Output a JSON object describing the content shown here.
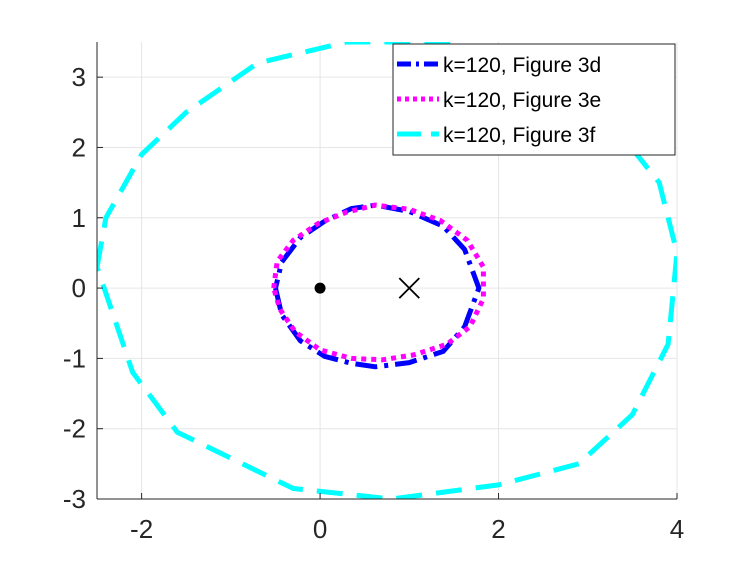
{
  "chart_data": {
    "type": "line",
    "title": "",
    "xlabel": "",
    "ylabel": "",
    "xlim": [
      -2.5,
      4
    ],
    "ylim": [
      -3,
      3.5
    ],
    "xticks": [
      -2,
      0,
      2,
      4
    ],
    "xtick_labels": [
      "-2",
      "0",
      "2",
      "4"
    ],
    "yticks": [
      -3,
      -2,
      -1,
      0,
      1,
      2,
      3
    ],
    "ytick_labels": [
      "-3",
      "-2",
      "-1",
      "0",
      "1",
      "2",
      "3"
    ],
    "grid": true,
    "legend": {
      "position": "top-right"
    },
    "series": [
      {
        "name": "k=120, Figure 3d",
        "color": "#0000ff",
        "line_style": "dash-dot",
        "points": [
          [
            -0.5,
            0
          ],
          [
            -0.43,
            -0.38
          ],
          [
            -0.22,
            -0.75
          ],
          [
            0.05,
            -0.97
          ],
          [
            0.35,
            -1.07
          ],
          [
            0.62,
            -1.12
          ],
          [
            1.0,
            -1.06
          ],
          [
            1.38,
            -0.9
          ],
          [
            1.62,
            -0.55
          ],
          [
            1.78,
            0
          ],
          [
            1.62,
            0.55
          ],
          [
            1.38,
            0.88
          ],
          [
            1.0,
            1.09
          ],
          [
            0.62,
            1.18
          ],
          [
            0.35,
            1.13
          ],
          [
            0.05,
            0.95
          ],
          [
            -0.22,
            0.72
          ],
          [
            -0.43,
            0.37
          ],
          [
            -0.5,
            0
          ]
        ]
      },
      {
        "name": "k=120, Figure 3e",
        "color": "#ff00ff",
        "line_style": "dotted",
        "points": [
          [
            -0.52,
            0
          ],
          [
            -0.48,
            0.38
          ],
          [
            -0.3,
            0.68
          ],
          [
            -0.02,
            0.92
          ],
          [
            0.3,
            1.08
          ],
          [
            0.62,
            1.18
          ],
          [
            1.0,
            1.12
          ],
          [
            1.35,
            0.96
          ],
          [
            1.65,
            0.68
          ],
          [
            1.83,
            0.3
          ],
          [
            1.83,
            -0.15
          ],
          [
            1.68,
            -0.55
          ],
          [
            1.42,
            -0.8
          ],
          [
            1.05,
            -0.95
          ],
          [
            0.7,
            -1.02
          ],
          [
            0.35,
            -1.0
          ],
          [
            0.0,
            -0.88
          ],
          [
            -0.28,
            -0.62
          ],
          [
            -0.45,
            -0.3
          ],
          [
            -0.52,
            0
          ]
        ]
      },
      {
        "name": "k=120, Figure 3f",
        "color": "#00ffff",
        "line_style": "dashed",
        "points": [
          [
            -2.5,
            0.3
          ],
          [
            -2.4,
            1.0
          ],
          [
            -2.0,
            1.9
          ],
          [
            -1.5,
            2.5
          ],
          [
            -0.7,
            3.2
          ],
          [
            0.3,
            3.5
          ],
          [
            1.5,
            3.5
          ],
          [
            2.5,
            3.0
          ],
          [
            3.3,
            2.3
          ],
          [
            3.8,
            1.5
          ],
          [
            4.0,
            0.5
          ],
          [
            3.9,
            -0.8
          ],
          [
            3.5,
            -1.8
          ],
          [
            2.9,
            -2.5
          ],
          [
            2.0,
            -2.8
          ],
          [
            0.8,
            -3.0
          ],
          [
            -0.3,
            -2.85
          ],
          [
            -1.6,
            -2.05
          ],
          [
            -2.1,
            -1.2
          ],
          [
            -2.5,
            0.3
          ]
        ]
      }
    ],
    "markers": [
      {
        "type": "dot",
        "x": 0,
        "y": 0,
        "color": "#000000"
      },
      {
        "type": "cross",
        "x": 1,
        "y": 0,
        "color": "#000000"
      }
    ]
  }
}
